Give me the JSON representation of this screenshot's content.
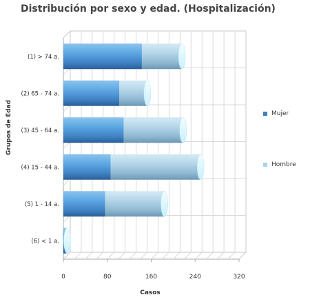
{
  "chart_data": {
    "type": "bar",
    "orientation": "horizontal",
    "stacked": true,
    "three_d": true,
    "title": "Distribución por sexo y edad. (Hospitalización)",
    "xlabel": "Casos",
    "ylabel": "Grupos de Edad",
    "xlim": [
      0,
      320
    ],
    "xticks": [
      "0",
      "80",
      "160",
      "240",
      "320"
    ],
    "grid": true,
    "legend_position": "right",
    "categories": [
      "(1) > 74 a.",
      "(2) 65 - 74 a.",
      "(3) 45 - 64 a.",
      "(4) 15 - 44 a.",
      "(5) 1 - 14 a.",
      "(6) < 1 a."
    ],
    "series": [
      {
        "name": "Mujer",
        "color": "#4a90d4",
        "values": [
          143,
          102,
          110,
          86,
          76,
          7
        ]
      },
      {
        "name": "Hombre",
        "color": "#a8d4f0",
        "values": [
          73,
          51,
          108,
          164,
          108,
          0
        ]
      }
    ]
  }
}
